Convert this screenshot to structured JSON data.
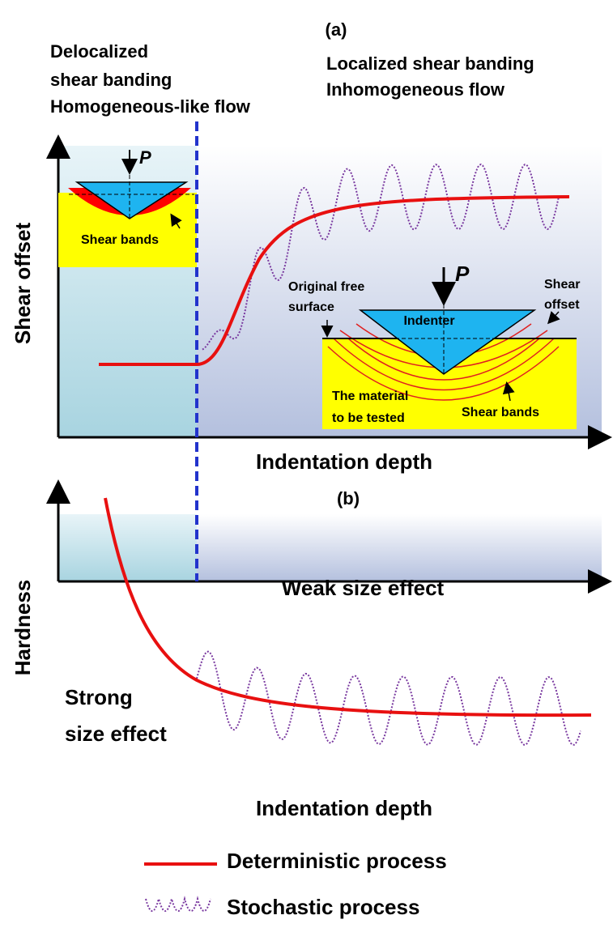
{
  "panel_a": {
    "label": "(a)",
    "left_regime": [
      "Delocalized",
      "shear banding",
      "Homogeneous-like flow"
    ],
    "right_regime": [
      "Localized shear banding",
      "Inhomogeneous flow"
    ],
    "y_axis_label": "Shear offset",
    "x_axis_label": "Indentation depth",
    "inset_small": {
      "load": "P",
      "shear_bands": "Shear bands"
    },
    "inset_large": {
      "load": "P",
      "free_surface": [
        "Original free",
        "surface"
      ],
      "indenter": "Indenter",
      "shear_offset": [
        "Shear",
        "offset"
      ],
      "material": [
        "The material",
        "to be tested"
      ],
      "shear_bands": "Shear bands"
    }
  },
  "panel_b": {
    "label": "(b)",
    "y_axis_label": "Hardness",
    "x_axis_label": "Indentation depth",
    "weak": "Weak size effect",
    "strong": [
      "Strong",
      "size effect"
    ]
  },
  "legend": {
    "deterministic": "Deterministic process",
    "stochastic": "Stochastic process"
  }
}
